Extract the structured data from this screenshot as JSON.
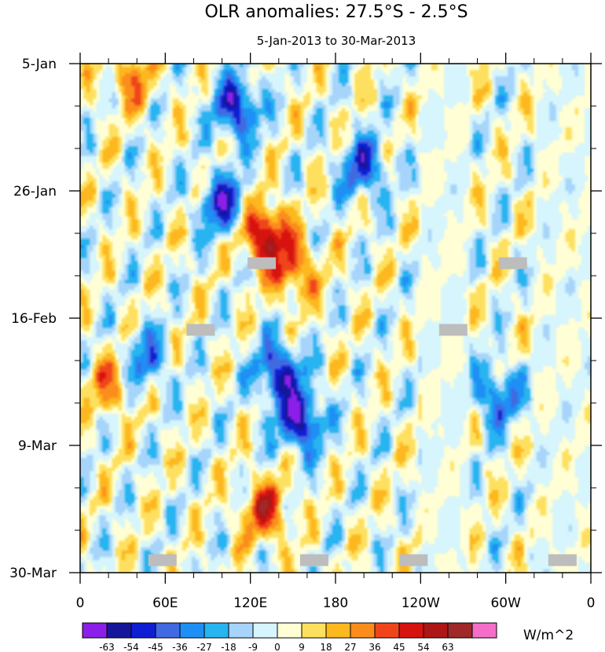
{
  "chart_data": {
    "type": "heatmap",
    "title": "OLR anomalies: 27.5°S - 2.5°S",
    "subtitle": "5-Jan-2013 to 30-Mar-2013",
    "x_tick_labels": [
      "0",
      "60E",
      "120E",
      "180",
      "120W",
      "60W",
      "0"
    ],
    "x_range": [
      0,
      360
    ],
    "y_tick_labels": [
      "5-Jan",
      "26-Jan",
      "16-Feb",
      "9-Mar",
      "30-Mar"
    ],
    "y_range": [
      "5-Jan-2013",
      "30-Mar-2013"
    ],
    "colorbar_unit": "W/m^2",
    "colorbar_levels": [
      "-63",
      "-54",
      "-45",
      "-36",
      "-27",
      "-18",
      "-9",
      "0",
      "9",
      "18",
      "27",
      "36",
      "45",
      "54",
      "63"
    ],
    "colorbar_colors": [
      "#8b1fe8",
      "#16169b",
      "#0f1ed4",
      "#4169e1",
      "#1e8ff5",
      "#28b4f0",
      "#a7d4fa",
      "#d6f5fc",
      "#fffed4",
      "#fee060",
      "#fdb81f",
      "#fb8d1c",
      "#f0451b",
      "#d7130f",
      "#ad1616",
      "#a02828",
      "#f56ec8"
    ],
    "features": [
      {
        "type": "positive",
        "lon": 130,
        "date": "2-Feb",
        "strength": 62
      },
      {
        "type": "positive",
        "lon": 150,
        "date": "8-Feb",
        "strength": 40
      },
      {
        "type": "positive",
        "lon": 130,
        "date": "20-Mar",
        "strength": 45
      },
      {
        "type": "positive",
        "lon": 35,
        "date": "7-Jan",
        "strength": 30
      },
      {
        "type": "positive",
        "lon": 20,
        "date": "27-Feb",
        "strength": 30
      },
      {
        "type": "negative",
        "lon": 110,
        "date": "12-Jan",
        "strength": -55
      },
      {
        "type": "negative",
        "lon": 100,
        "date": "28-Jan",
        "strength": -50
      },
      {
        "type": "negative",
        "lon": 140,
        "date": "25-Feb",
        "strength": -55
      },
      {
        "type": "negative",
        "lon": 155,
        "date": "5-Mar",
        "strength": -60
      },
      {
        "type": "negative",
        "lon": 200,
        "date": "22-Jan",
        "strength": -45
      },
      {
        "type": "negative",
        "lon": 295,
        "date": "1-Mar",
        "strength": -40
      },
      {
        "type": "negative",
        "lon": 45,
        "date": "23-Feb",
        "strength": -35
      }
    ],
    "missing_data_markers": [
      {
        "lon": 128,
        "date": "7-Feb"
      },
      {
        "lon": 85,
        "date": "18-Feb"
      },
      {
        "lon": 263,
        "date": "18-Feb"
      },
      {
        "lon": 305,
        "date": "7-Feb"
      },
      {
        "lon": 58,
        "date": "28-Mar"
      },
      {
        "lon": 165,
        "date": "28-Mar"
      },
      {
        "lon": 235,
        "date": "28-Mar"
      },
      {
        "lon": 340,
        "date": "28-Mar"
      }
    ]
  }
}
